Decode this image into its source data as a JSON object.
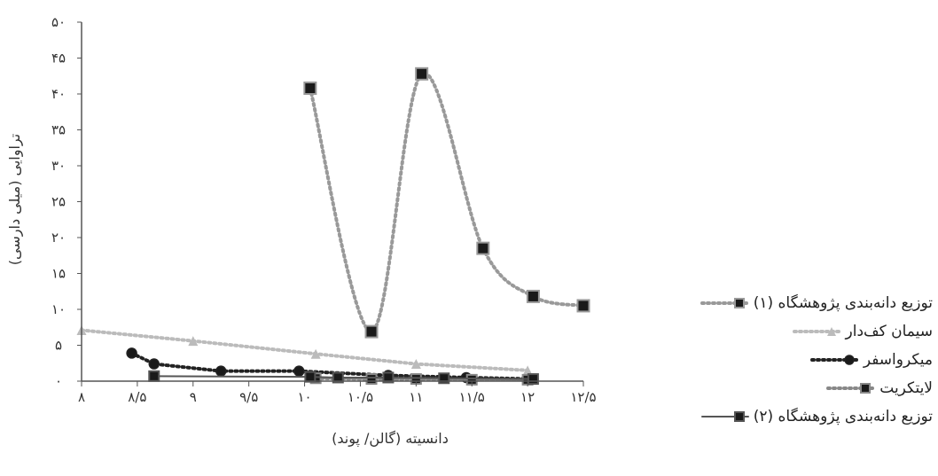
{
  "chart_data": {
    "type": "line",
    "xlabel": "دانسیته (گالن/ پوند)",
    "ylabel": "تراوایی (میلی دارسی)",
    "xlim": [
      8,
      12.5
    ],
    "ylim": [
      0,
      50
    ],
    "x_ticks": [
      {
        "value": 8,
        "label": "۸"
      },
      {
        "value": 8.5,
        "label": "۸/۵"
      },
      {
        "value": 9,
        "label": "۹"
      },
      {
        "value": 9.5,
        "label": "۹/۵"
      },
      {
        "value": 10,
        "label": "۱۰"
      },
      {
        "value": 10.5,
        "label": "۱۰/۵"
      },
      {
        "value": 11,
        "label": "۱۱"
      },
      {
        "value": 11.5,
        "label": "۱۱/۵"
      },
      {
        "value": 12,
        "label": "۱۲"
      },
      {
        "value": 12.5,
        "label": "۱۲/۵"
      }
    ],
    "y_ticks": [
      {
        "value": 0,
        "label": "۰"
      },
      {
        "value": 5,
        "label": "۵"
      },
      {
        "value": 10,
        "label": "۱۰"
      },
      {
        "value": 15,
        "label": "۱۵"
      },
      {
        "value": 20,
        "label": "۲۰"
      },
      {
        "value": 25,
        "label": "۲۵"
      },
      {
        "value": 30,
        "label": "۳۰"
      },
      {
        "value": 35,
        "label": "۳۵"
      },
      {
        "value": 40,
        "label": "۴۰"
      },
      {
        "value": 45,
        "label": "۴۵"
      },
      {
        "value": 50,
        "label": "۵۰"
      }
    ],
    "series": [
      {
        "name": "توزیع دانه‌بندی پژوهشگاه (۱)",
        "color": "#999999",
        "marker": "square",
        "line": "dotted",
        "smooth": true,
        "points": [
          [
            10.05,
            40.8
          ],
          [
            10.6,
            6.9
          ],
          [
            11.05,
            42.8
          ],
          [
            11.6,
            18.5
          ],
          [
            12.05,
            11.8
          ],
          [
            12.5,
            10.5
          ]
        ]
      },
      {
        "name": "سیمان کف‌دار",
        "color": "#bbbbbb",
        "marker": "triangle",
        "line": "dotted",
        "smooth": false,
        "points": [
          [
            8.0,
            7.1
          ],
          [
            9.0,
            5.6
          ],
          [
            10.1,
            3.8
          ],
          [
            11.0,
            2.4
          ],
          [
            12.0,
            1.5
          ]
        ]
      },
      {
        "name": "میکرواسفر",
        "color": "#222222",
        "marker": "circle",
        "line": "dotted",
        "smooth": false,
        "points": [
          [
            8.45,
            3.9
          ],
          [
            8.65,
            2.4
          ],
          [
            9.25,
            1.4
          ],
          [
            9.95,
            1.4
          ],
          [
            10.75,
            0.8
          ],
          [
            11.45,
            0.5
          ],
          [
            12.05,
            0.3
          ]
        ]
      },
      {
        "name": "لایتکریت",
        "color": "#888888",
        "marker": "square",
        "line": "dotted",
        "smooth": false,
        "points": [
          [
            10.1,
            0.4
          ],
          [
            10.6,
            0.3
          ],
          [
            11.0,
            0.3
          ],
          [
            11.5,
            0.2
          ],
          [
            12.0,
            0.2
          ]
        ]
      },
      {
        "name": "توزیع دانه‌بندی پژوهشگاه (۲)",
        "color": "#555555",
        "marker": "square",
        "line": "solid",
        "smooth": false,
        "points": [
          [
            8.65,
            0.7
          ],
          [
            10.05,
            0.6
          ],
          [
            10.3,
            0.5
          ],
          [
            10.75,
            0.5
          ],
          [
            11.25,
            0.4
          ],
          [
            12.05,
            0.3
          ]
        ]
      }
    ]
  }
}
